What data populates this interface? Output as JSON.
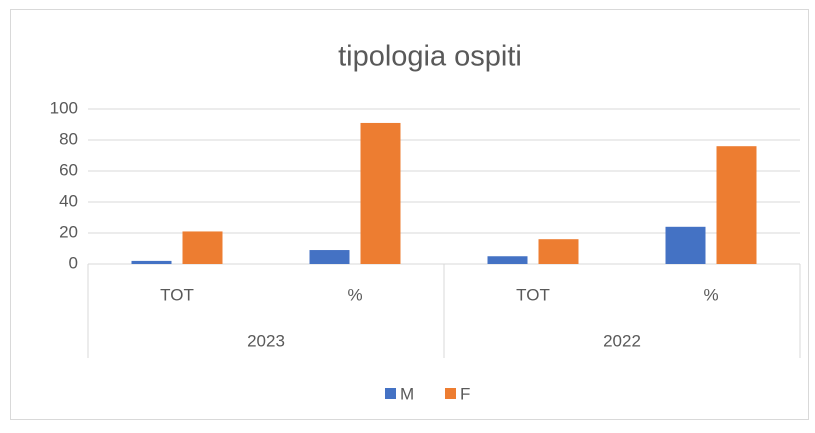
{
  "chart_data": {
    "type": "bar",
    "title": "tipologia ospiti",
    "categories": [
      "TOT",
      "%",
      "TOT",
      "%"
    ],
    "groups": [
      "2023",
      "2022"
    ],
    "series": [
      {
        "name": "M",
        "color": "#4472c4",
        "values": [
          2,
          9,
          5,
          24
        ]
      },
      {
        "name": "F",
        "color": "#ed7d31",
        "values": [
          21,
          91,
          16,
          76
        ]
      }
    ],
    "ylim": [
      0,
      100
    ],
    "yticks": [
      0,
      20,
      40,
      60,
      80,
      100
    ],
    "grid": true,
    "legend": "bottom"
  }
}
